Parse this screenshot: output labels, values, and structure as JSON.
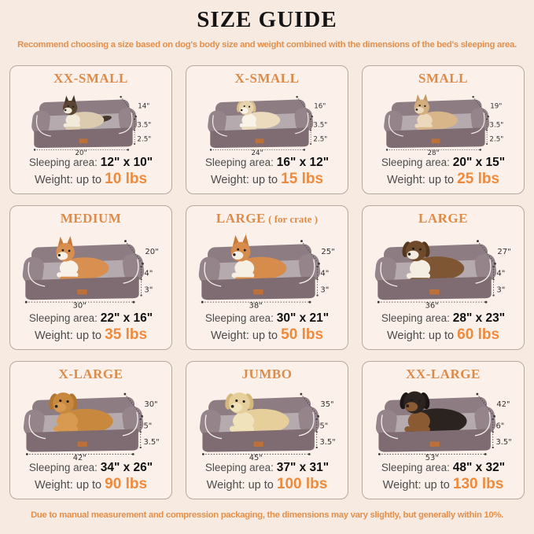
{
  "header": {
    "title": "SIZE GUIDE",
    "subtitle": "Recommend choosing a size based on dog's body size and weight combined with the dimensions of the bed's sleeping area."
  },
  "labels": {
    "sleeping_area": "Sleeping area:",
    "weight_prefix": "Weight: up to"
  },
  "footer": {
    "note": "Due to manual measurement and compression packaging, the dimensions may vary slightly, but generally within 10%."
  },
  "colors": {
    "accent_orange": "#e2904c",
    "weight_orange": "#ef8a3c",
    "page_background": "#f7eae1",
    "card_background": "#fbf1ea",
    "card_border": "#b6a89f",
    "bed_bolster_gray": "#8d7d83",
    "bed_cushion_gray": "#b5abae",
    "title_black": "#141414"
  },
  "cards": [
    {
      "size_label": "XX-SMALL",
      "size_suffix": "",
      "pet": "cat",
      "depth": "14\"",
      "bolster_height": "3.5\"",
      "base_height": "2.5\"",
      "width": "20\"",
      "sleeping_area": "12\" x 10\"",
      "weight": "10 lbs"
    },
    {
      "size_label": "X-SMALL",
      "size_suffix": "",
      "pet": "puppy",
      "depth": "16\"",
      "bolster_height": "3.5\"",
      "base_height": "2.5\"",
      "width": "24\"",
      "sleeping_area": "16\" x 12\"",
      "weight": "15 lbs"
    },
    {
      "size_label": "SMALL",
      "size_suffix": "",
      "pet": "french-bulldog",
      "depth": "19\"",
      "bolster_height": "3.5\"",
      "base_height": "2.5\"",
      "width": "28\"",
      "sleeping_area": "20\" x 15\"",
      "weight": "25 lbs"
    },
    {
      "size_label": "MEDIUM",
      "size_suffix": "",
      "pet": "corgi",
      "depth": "20\"",
      "bolster_height": "4\"",
      "base_height": "3\"",
      "width": "30\"",
      "sleeping_area": "22\" x 16\"",
      "weight": "35 lbs"
    },
    {
      "size_label": "LARGE",
      "size_suffix": " ( for crate )",
      "pet": "shiba-inu",
      "depth": "25\"",
      "bolster_height": "4\"",
      "base_height": "3\"",
      "width": "38\"",
      "sleeping_area": "30\" x 21\"",
      "weight": "50 lbs"
    },
    {
      "size_label": "LARGE",
      "size_suffix": "",
      "pet": "australian-shepherd",
      "depth": "27\"",
      "bolster_height": "4\"",
      "base_height": "3\"",
      "width": "36\"",
      "sleeping_area": "28\" x 23\"",
      "weight": "60 lbs"
    },
    {
      "size_label": "X-LARGE",
      "size_suffix": "",
      "pet": "golden-retriever",
      "depth": "30\"",
      "bolster_height": "5\"",
      "base_height": "3.5\"",
      "width": "42\"",
      "sleeping_area": "34\" x 26\"",
      "weight": "90 lbs"
    },
    {
      "size_label": "JUMBO",
      "size_suffix": "",
      "pet": "labrador",
      "depth": "35\"",
      "bolster_height": "5\"",
      "base_height": "3.5\"",
      "width": "45\"",
      "sleeping_area": "37\" x 31\"",
      "weight": "100 lbs"
    },
    {
      "size_label": "XX-LARGE",
      "size_suffix": "",
      "pet": "rottweiler",
      "depth": "42\"",
      "bolster_height": "6\"",
      "base_height": "3.5\"",
      "width": "53\"",
      "sleeping_area": "48\" x 32\"",
      "weight": "130 lbs"
    }
  ]
}
